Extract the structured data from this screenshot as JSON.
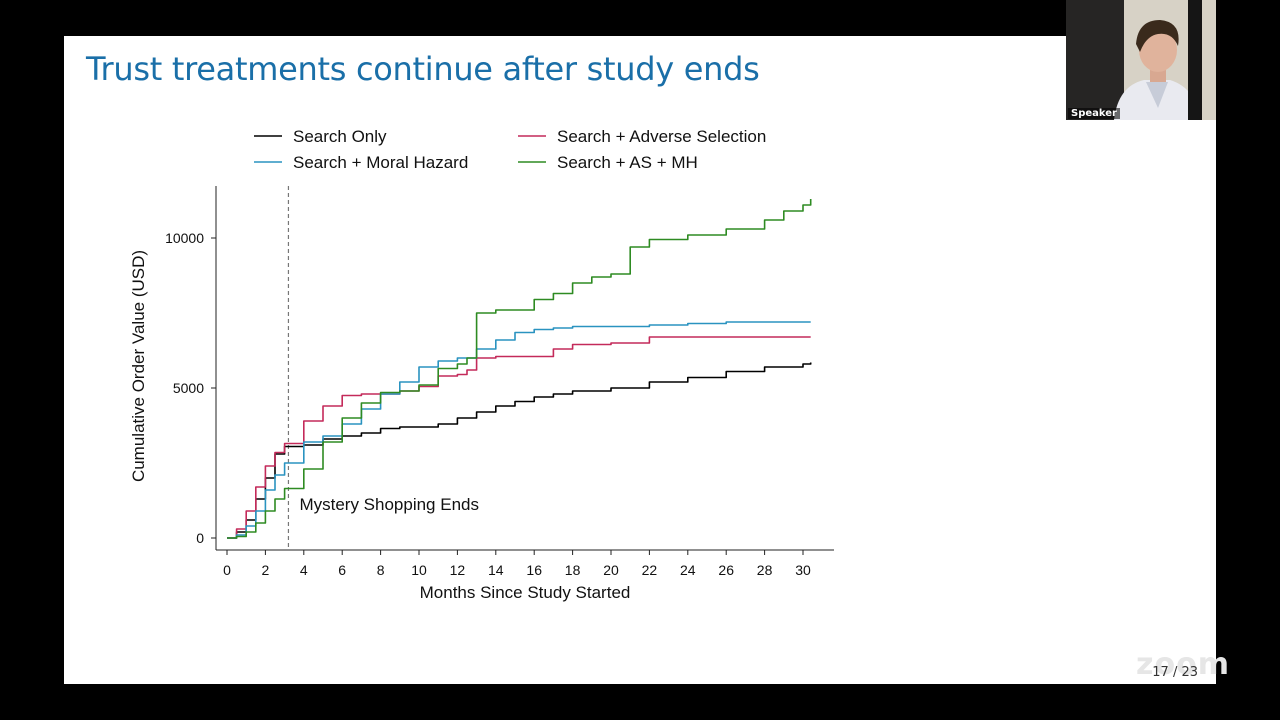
{
  "slide": {
    "title": "Trust treatments continue after study ends",
    "page_number": "17 / 23",
    "watermark": "zoom"
  },
  "video": {
    "label": "Speaker"
  },
  "colors": {
    "title": "#1a6fa8",
    "search_only": "#000000",
    "moral_hazard": "#2a93c0",
    "adverse_selection": "#c42a5a",
    "as_mh": "#2e8b22"
  },
  "chart_data": {
    "type": "line",
    "xlabel": "Months Since Study Started",
    "ylabel": "Cumulative Order Value (USD)",
    "xlim": [
      0,
      31
    ],
    "ylim": [
      0,
      12000
    ],
    "xticks": [
      0,
      2,
      4,
      6,
      8,
      10,
      12,
      14,
      16,
      18,
      20,
      22,
      24,
      26,
      28,
      30
    ],
    "yticks": [
      0,
      5000,
      10000
    ],
    "grid": false,
    "legend_placement": "top",
    "vline": {
      "x": 3.2,
      "label": "Mystery Shopping Ends"
    },
    "series": [
      {
        "name": "Search Only",
        "color": "#000000",
        "x": [
          0,
          0.5,
          1,
          1.5,
          2,
          2.5,
          3,
          4,
          5,
          6,
          7,
          8,
          9,
          10,
          11,
          12,
          13,
          14,
          15,
          16,
          17,
          18,
          20,
          22,
          24,
          26,
          28,
          30,
          30.4
        ],
        "y": [
          0,
          200,
          600,
          1300,
          2000,
          2800,
          3050,
          3100,
          3300,
          3400,
          3500,
          3650,
          3700,
          3700,
          3800,
          4000,
          4200,
          4400,
          4550,
          4700,
          4800,
          4900,
          5000,
          5200,
          5350,
          5550,
          5700,
          5800,
          5850
        ]
      },
      {
        "name": "Search + Adverse Selection",
        "color": "#c42a5a",
        "x": [
          0,
          0.5,
          1,
          1.5,
          2,
          2.5,
          3,
          4,
          5,
          6,
          7,
          8,
          9,
          10,
          11,
          12,
          12.5,
          13,
          14,
          16,
          17,
          18,
          20,
          22,
          24,
          26,
          28,
          30,
          30.4
        ],
        "y": [
          0,
          300,
          900,
          1700,
          2400,
          2850,
          3150,
          3900,
          4400,
          4750,
          4800,
          4800,
          4900,
          5050,
          5400,
          5450,
          5600,
          6000,
          6050,
          6050,
          6300,
          6450,
          6500,
          6700,
          6700,
          6700,
          6700,
          6700,
          6700
        ]
      },
      {
        "name": "Search + Moral Hazard",
        "color": "#2a93c0",
        "x": [
          0,
          0.5,
          1,
          1.5,
          2,
          2.5,
          3,
          4,
          5,
          6,
          7,
          8,
          9,
          10,
          11,
          12,
          13,
          14,
          15,
          16,
          17,
          18,
          20,
          22,
          24,
          26,
          28,
          30,
          30.4
        ],
        "y": [
          0,
          100,
          400,
          900,
          1600,
          2100,
          2500,
          3200,
          3400,
          3800,
          4300,
          4800,
          5200,
          5700,
          5900,
          6000,
          6300,
          6600,
          6850,
          6950,
          7000,
          7050,
          7050,
          7100,
          7150,
          7200,
          7200,
          7200,
          7200
        ]
      },
      {
        "name": "Search + AS + MH",
        "color": "#2e8b22",
        "x": [
          0,
          0.5,
          1,
          1.5,
          2,
          2.5,
          3,
          4,
          5,
          6,
          7,
          8,
          9,
          10,
          11,
          12,
          12.5,
          13,
          14,
          16,
          17,
          18,
          19,
          20,
          21,
          22,
          24,
          26,
          28,
          29,
          30,
          30.4
        ],
        "y": [
          0,
          50,
          200,
          500,
          900,
          1300,
          1650,
          2300,
          3200,
          4000,
          4500,
          4850,
          4900,
          5100,
          5650,
          5800,
          6000,
          7500,
          7600,
          7950,
          8150,
          8500,
          8700,
          8800,
          9700,
          9950,
          10100,
          10300,
          10600,
          10900,
          11100,
          11300
        ]
      }
    ]
  }
}
